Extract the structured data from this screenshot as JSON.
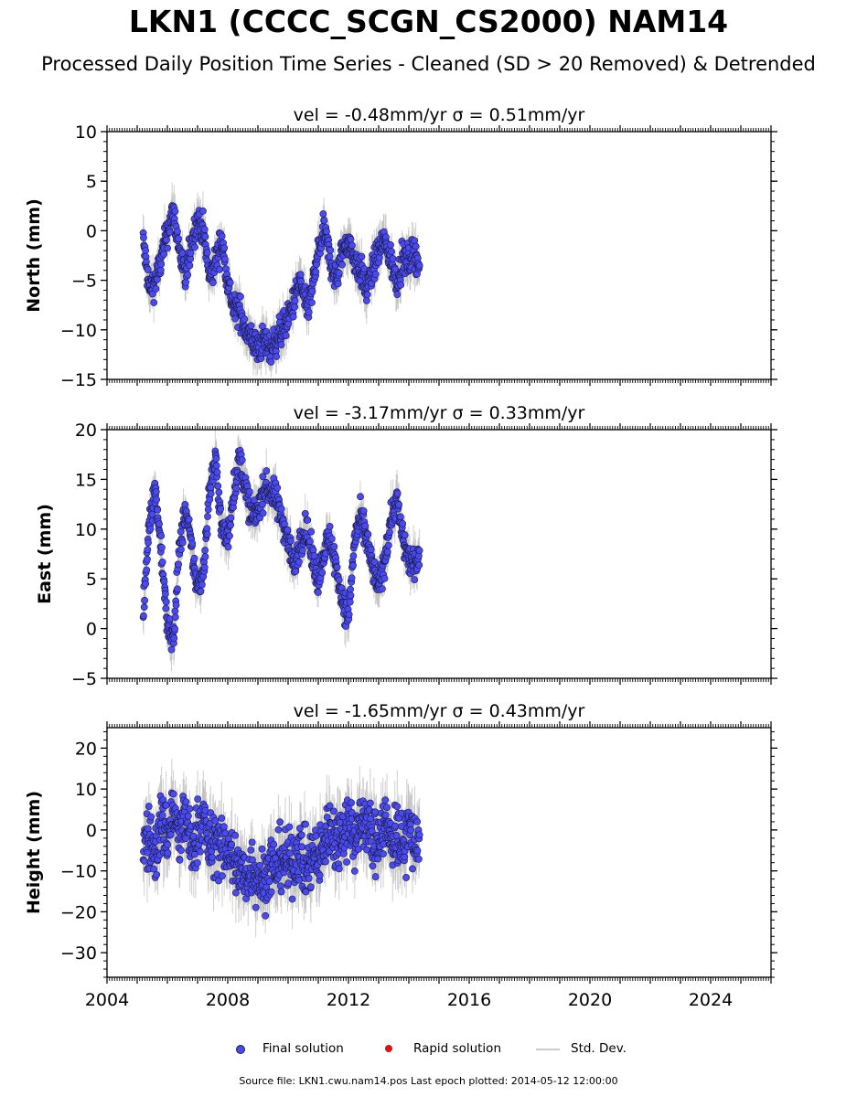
{
  "header": {
    "title": "LKN1 (CCCC_SCGN_CS2000) NAM14",
    "subtitle": "Processed Daily Position Time Series - Cleaned (SD > 20 Removed) & Detrended"
  },
  "footer": {
    "source": "Source file: LKN1.cwu.nam14.pos  Last epoch plotted: 2014-05-12 12:00:00"
  },
  "legend": {
    "final_label": "Final solution",
    "rapid_label": "Rapid solution",
    "std_label": "Std. Dev."
  },
  "colors": {
    "final": "#4a4af5",
    "rapid": "#dd1111",
    "std": "#bbbbbb"
  },
  "chart_data": [
    {
      "type": "scatter",
      "panel_title": "vel = -0.48mm/yr   σ = 0.51mm/yr",
      "ylabel": "North (mm)",
      "xlim": [
        2004,
        2026
      ],
      "ylim": [
        -15,
        10
      ],
      "yticks": [
        -15,
        -10,
        -5,
        0,
        5,
        10
      ],
      "xticks": [
        2004,
        2008,
        2012,
        2016,
        2020,
        2024
      ],
      "show_xtick_labels": false,
      "series": [
        {
          "x": [
            2005.2,
            2005.4,
            2005.6,
            2005.8,
            2006.0,
            2006.2,
            2006.4,
            2006.6,
            2006.8,
            2007.0,
            2007.2,
            2007.4,
            2007.6,
            2007.8,
            2008.0,
            2008.2,
            2008.4,
            2008.6,
            2008.8,
            2009.0,
            2009.2,
            2009.4,
            2009.6,
            2009.8,
            2010.0,
            2010.2,
            2010.4,
            2010.6,
            2010.8,
            2011.0,
            2011.2,
            2011.4,
            2011.6,
            2011.8,
            2012.0,
            2012.2,
            2012.4,
            2012.6,
            2012.8,
            2013.0,
            2013.2,
            2013.4,
            2013.6,
            2013.8,
            2014.0,
            2014.2,
            2014.36
          ],
          "y": [
            -1,
            -6,
            -5,
            -3,
            0,
            2,
            -2,
            -5,
            -1,
            1,
            0,
            -5,
            -3,
            -1,
            -5,
            -8,
            -8,
            -10,
            -11,
            -12,
            -11,
            -12,
            -11,
            -10,
            -9,
            -7,
            -5,
            -8,
            -6,
            -2,
            0,
            -3,
            -5,
            -2,
            -1,
            -3,
            -4,
            -6,
            -4,
            -2,
            -1,
            -3,
            -5,
            -3,
            -3,
            -2,
            -4
          ]
        }
      ]
    },
    {
      "type": "scatter",
      "panel_title": "vel = -3.17mm/yr   σ = 0.33mm/yr",
      "ylabel": "East (mm)",
      "xlim": [
        2004,
        2026
      ],
      "ylim": [
        -5,
        20
      ],
      "yticks": [
        -5,
        0,
        5,
        10,
        15,
        20
      ],
      "xticks": [
        2004,
        2008,
        2012,
        2016,
        2020,
        2024
      ],
      "show_xtick_labels": false,
      "series": [
        {
          "x": [
            2005.2,
            2005.4,
            2005.6,
            2005.8,
            2006.0,
            2006.2,
            2006.4,
            2006.6,
            2006.8,
            2007.0,
            2007.2,
            2007.4,
            2007.6,
            2007.8,
            2008.0,
            2008.2,
            2008.4,
            2008.6,
            2008.8,
            2009.0,
            2009.2,
            2009.4,
            2009.6,
            2009.8,
            2010.0,
            2010.2,
            2010.4,
            2010.6,
            2010.8,
            2011.0,
            2011.2,
            2011.4,
            2011.6,
            2011.8,
            2012.0,
            2012.2,
            2012.4,
            2012.6,
            2012.8,
            2013.0,
            2013.2,
            2013.4,
            2013.6,
            2013.8,
            2014.0,
            2014.2,
            2014.36
          ],
          "y": [
            1,
            11,
            14,
            8,
            0,
            -1,
            8,
            12,
            8,
            4,
            6,
            14,
            17,
            10,
            9,
            14,
            17,
            14,
            11,
            12,
            14,
            14,
            13,
            11,
            9,
            6,
            9,
            10,
            7,
            5,
            8,
            9,
            6,
            3,
            1,
            9,
            11,
            9,
            6,
            4,
            7,
            11,
            13,
            9,
            7,
            6,
            8
          ]
        }
      ]
    },
    {
      "type": "scatter",
      "panel_title": "vel = -1.65mm/yr   σ = 0.43mm/yr",
      "ylabel": "Height (mm)",
      "xlim": [
        2004,
        2026
      ],
      "ylim": [
        -36,
        25
      ],
      "yticks": [
        -30,
        -20,
        -10,
        0,
        10,
        20
      ],
      "xticks": [
        2004,
        2008,
        2012,
        2016,
        2020,
        2024
      ],
      "show_xtick_labels": true,
      "series": [
        {
          "x": [
            2005.2,
            2005.4,
            2005.6,
            2005.8,
            2006.0,
            2006.2,
            2006.4,
            2006.6,
            2006.8,
            2007.0,
            2007.2,
            2007.4,
            2007.6,
            2007.8,
            2008.0,
            2008.2,
            2008.4,
            2008.6,
            2008.8,
            2009.0,
            2009.2,
            2009.4,
            2009.6,
            2009.8,
            2010.0,
            2010.2,
            2010.4,
            2010.6,
            2010.8,
            2011.0,
            2011.2,
            2011.4,
            2011.6,
            2011.8,
            2012.0,
            2012.2,
            2012.4,
            2012.6,
            2012.8,
            2013.0,
            2013.2,
            2013.4,
            2013.6,
            2013.8,
            2014.0,
            2014.2,
            2014.36
          ],
          "y": [
            -3,
            -2,
            -6,
            2,
            -1,
            5,
            -3,
            4,
            -6,
            0,
            3,
            -5,
            -2,
            -6,
            -4,
            -8,
            -10,
            -12,
            -9,
            -11,
            -13,
            -8,
            -10,
            -6,
            -9,
            -7,
            -5,
            -10,
            -6,
            -8,
            -3,
            1,
            -3,
            0,
            2,
            -2,
            1,
            3,
            -4,
            -1,
            2,
            -3,
            0,
            -5,
            1,
            -4,
            0
          ]
        }
      ]
    }
  ]
}
